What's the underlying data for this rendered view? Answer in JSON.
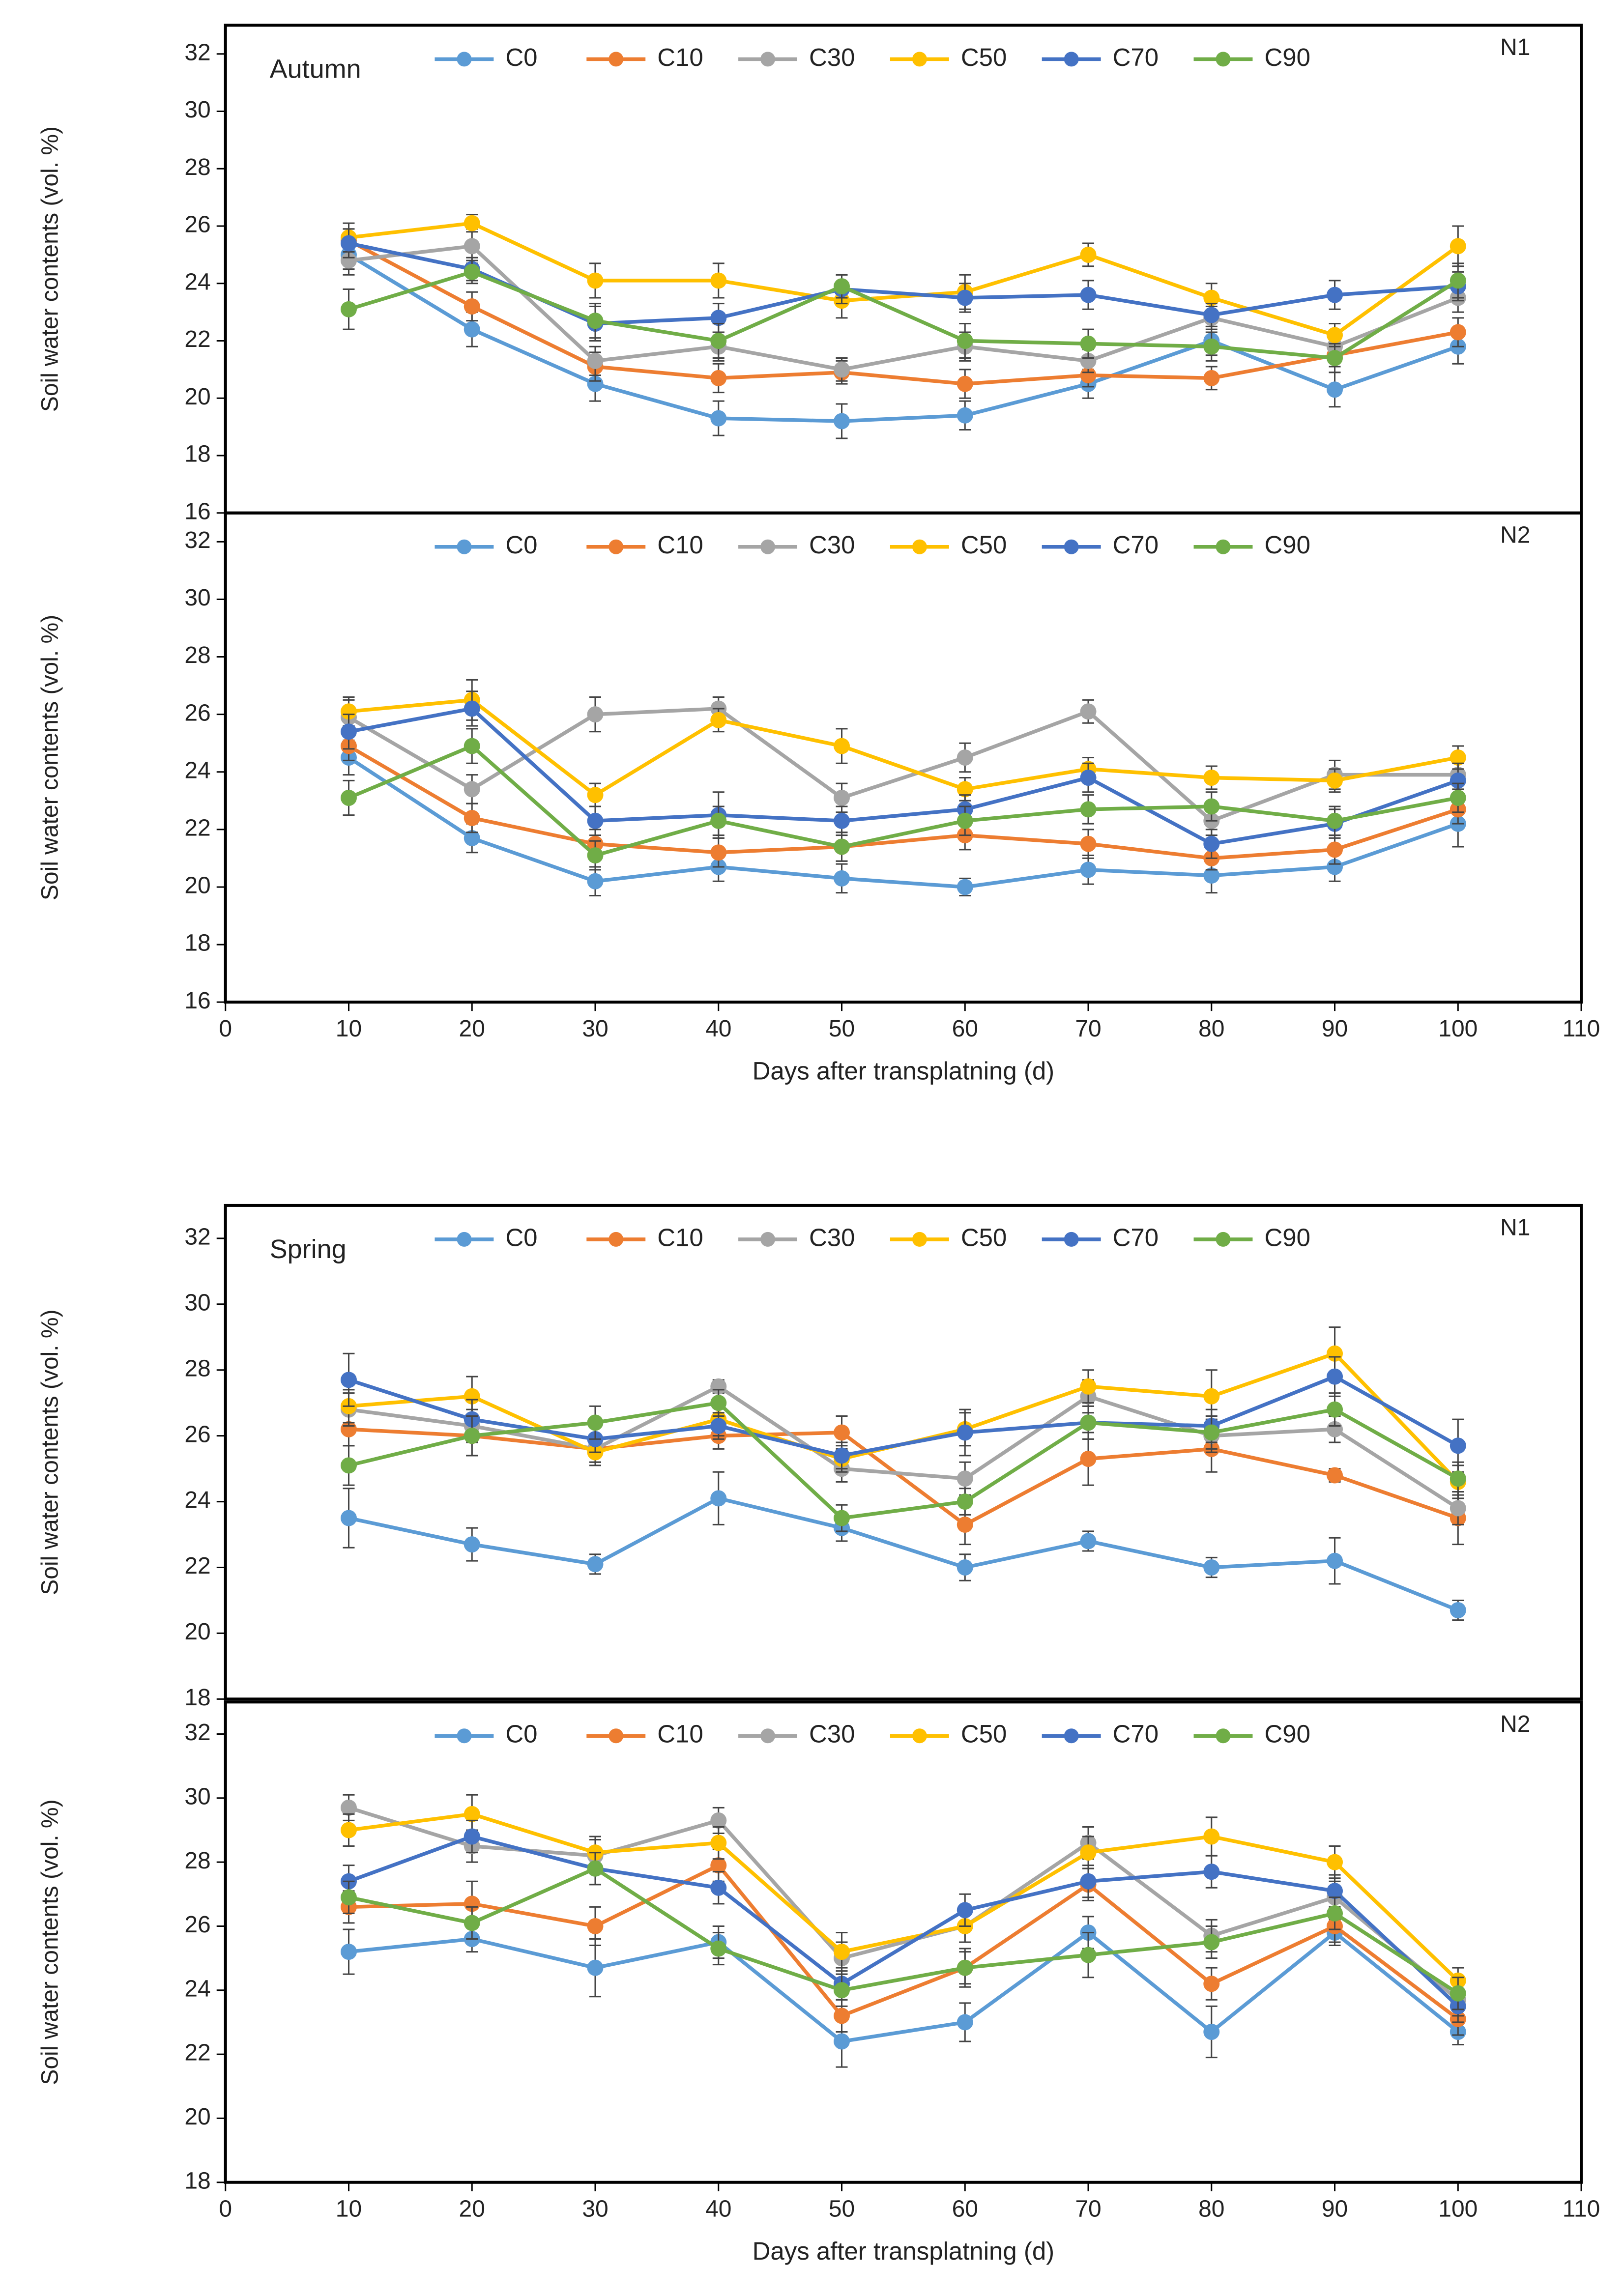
{
  "chart_data": [
    {
      "type": "line",
      "title": "Autumn",
      "panel_label": "N1",
      "ylabel": "Soil water contents (vol. %)",
      "x": [
        10,
        20,
        30,
        40,
        50,
        60,
        70,
        80,
        90,
        100
      ],
      "xlim": [
        0,
        110
      ],
      "ylim": [
        16,
        33
      ],
      "yticks": [
        16,
        18,
        20,
        22,
        24,
        26,
        28,
        30,
        32
      ],
      "legend": "top",
      "series": [
        {
          "name": "C0",
          "color": "#5b9bd5",
          "values": [
            25.0,
            22.4,
            20.5,
            19.3,
            19.2,
            19.4,
            20.5,
            22.0,
            20.3,
            21.8
          ],
          "errors": [
            0.5,
            0.6,
            0.6,
            0.6,
            0.6,
            0.5,
            0.5,
            0.5,
            0.6,
            0.6
          ]
        },
        {
          "name": "C10",
          "color": "#ed7d31",
          "values": [
            25.5,
            23.2,
            21.1,
            20.7,
            20.9,
            20.5,
            20.8,
            20.7,
            21.5,
            22.3
          ],
          "errors": [
            0.4,
            0.5,
            0.5,
            0.5,
            0.4,
            0.5,
            0.4,
            0.4,
            0.4,
            0.5
          ]
        },
        {
          "name": "C30",
          "color": "#a5a5a5",
          "values": [
            24.8,
            25.3,
            21.3,
            21.8,
            21.0,
            21.8,
            21.3,
            22.8,
            21.8,
            23.5
          ],
          "errors": [
            0.5,
            0.6,
            0.5,
            0.5,
            0.4,
            0.5,
            0.4,
            0.4,
            0.5,
            0.5
          ]
        },
        {
          "name": "C50",
          "color": "#ffc000",
          "values": [
            25.6,
            26.1,
            24.1,
            24.1,
            23.4,
            23.7,
            25.0,
            23.5,
            22.2,
            25.3
          ],
          "errors": [
            0.5,
            0.3,
            0.6,
            0.6,
            0.6,
            0.6,
            0.4,
            0.5,
            0.4,
            0.7
          ]
        },
        {
          "name": "C70",
          "color": "#4472c4",
          "values": [
            25.4,
            24.5,
            22.6,
            22.8,
            23.8,
            23.5,
            23.6,
            22.9,
            23.6,
            23.9
          ],
          "errors": [
            0.5,
            0.4,
            0.6,
            0.5,
            0.5,
            0.5,
            0.5,
            0.4,
            0.5,
            0.5
          ]
        },
        {
          "name": "C90",
          "color": "#70ad47",
          "values": [
            23.1,
            24.4,
            22.7,
            22.0,
            23.9,
            22.0,
            21.9,
            21.8,
            21.4,
            24.1
          ],
          "errors": [
            0.7,
            0.4,
            0.6,
            0.6,
            0.4,
            0.6,
            0.5,
            0.5,
            0.5,
            0.6
          ]
        }
      ]
    },
    {
      "type": "line",
      "panel_label": "N2",
      "ylabel": "Soil water contents (vol. %)",
      "xlabel": "Days after transplatning (d)",
      "x": [
        10,
        20,
        30,
        40,
        50,
        60,
        70,
        80,
        90,
        100
      ],
      "xlim": [
        0,
        110
      ],
      "xticks": [
        0,
        10,
        20,
        30,
        40,
        50,
        60,
        70,
        80,
        90,
        100,
        110
      ],
      "ylim": [
        16,
        33
      ],
      "yticks": [
        16,
        18,
        20,
        22,
        24,
        26,
        28,
        30,
        32
      ],
      "legend": "top",
      "series": [
        {
          "name": "C0",
          "color": "#5b9bd5",
          "values": [
            24.5,
            21.7,
            20.2,
            20.7,
            20.3,
            20.0,
            20.6,
            20.4,
            20.7,
            22.2
          ],
          "errors": [
            0.6,
            0.5,
            0.5,
            0.5,
            0.5,
            0.3,
            0.5,
            0.6,
            0.5,
            0.8
          ]
        },
        {
          "name": "C10",
          "color": "#ed7d31",
          "values": [
            24.9,
            22.4,
            21.5,
            21.2,
            21.4,
            21.8,
            21.5,
            21.0,
            21.3,
            22.7
          ],
          "errors": [
            0.5,
            0.5,
            0.5,
            0.5,
            0.5,
            0.5,
            0.5,
            0.4,
            0.5,
            0.5
          ]
        },
        {
          "name": "C30",
          "color": "#a5a5a5",
          "values": [
            25.9,
            23.4,
            26.0,
            26.2,
            23.1,
            24.5,
            26.1,
            22.3,
            23.9,
            23.9
          ],
          "errors": [
            0.6,
            0.5,
            0.6,
            0.4,
            0.5,
            0.5,
            0.4,
            0.5,
            0.5,
            0.5
          ]
        },
        {
          "name": "C50",
          "color": "#ffc000",
          "values": [
            26.1,
            26.5,
            23.2,
            25.8,
            24.9,
            23.4,
            24.1,
            23.8,
            23.7,
            24.5
          ],
          "errors": [
            0.5,
            0.7,
            0.4,
            0.4,
            0.6,
            0.4,
            0.4,
            0.4,
            0.4,
            0.4
          ]
        },
        {
          "name": "C70",
          "color": "#4472c4",
          "values": [
            25.4,
            26.2,
            22.3,
            22.5,
            22.3,
            22.7,
            23.8,
            21.5,
            22.2,
            23.7
          ],
          "errors": [
            0.6,
            0.6,
            0.5,
            0.8,
            0.5,
            0.5,
            0.5,
            0.5,
            0.5,
            0.6
          ]
        },
        {
          "name": "C90",
          "color": "#70ad47",
          "values": [
            23.1,
            24.9,
            21.1,
            22.3,
            21.4,
            22.3,
            22.7,
            22.8,
            22.3,
            23.1
          ],
          "errors": [
            0.6,
            0.6,
            0.5,
            0.5,
            0.5,
            0.5,
            0.5,
            0.5,
            0.5,
            0.5
          ]
        }
      ]
    },
    {
      "type": "line",
      "title": "Spring",
      "panel_label": "N1",
      "ylabel": "Soil water contents (vol. %)",
      "x": [
        10,
        20,
        30,
        40,
        50,
        60,
        70,
        80,
        90,
        100
      ],
      "xlim": [
        0,
        110
      ],
      "ylim": [
        18,
        33
      ],
      "yticks": [
        18,
        20,
        22,
        24,
        26,
        28,
        30,
        32
      ],
      "legend": "top",
      "series": [
        {
          "name": "C0",
          "color": "#5b9bd5",
          "values": [
            23.5,
            22.7,
            22.1,
            24.1,
            23.2,
            22.0,
            22.8,
            22.0,
            22.2,
            20.7
          ],
          "errors": [
            0.9,
            0.5,
            0.3,
            0.8,
            0.4,
            0.4,
            0.3,
            0.3,
            0.7,
            0.3
          ]
        },
        {
          "name": "C10",
          "color": "#ed7d31",
          "values": [
            26.2,
            26.0,
            25.6,
            26.0,
            26.1,
            23.3,
            25.3,
            25.6,
            24.8,
            23.5
          ],
          "errors": [
            0.5,
            0.6,
            0.4,
            0.4,
            0.5,
            0.6,
            0.8,
            0.7,
            0.2,
            0.8
          ]
        },
        {
          "name": "C30",
          "color": "#a5a5a5",
          "values": [
            26.8,
            26.3,
            25.6,
            27.5,
            25.0,
            24.7,
            27.2,
            26.0,
            26.2,
            23.8
          ],
          "errors": [
            0.5,
            0.5,
            0.4,
            0.2,
            0.4,
            0.5,
            0.5,
            0.5,
            0.4,
            0.5
          ]
        },
        {
          "name": "C50",
          "color": "#ffc000",
          "values": [
            26.9,
            27.2,
            25.5,
            26.5,
            25.3,
            26.2,
            27.5,
            27.2,
            28.5,
            24.6
          ],
          "errors": [
            0.5,
            0.6,
            0.4,
            0.5,
            0.4,
            0.5,
            0.5,
            0.8,
            0.8,
            0.5
          ]
        },
        {
          "name": "C70",
          "color": "#4472c4",
          "values": [
            27.7,
            26.5,
            25.9,
            26.3,
            25.4,
            26.1,
            26.4,
            26.3,
            27.8,
            25.7
          ],
          "errors": [
            0.8,
            0.6,
            0.4,
            0.4,
            0.4,
            0.7,
            0.5,
            0.5,
            0.6,
            0.8
          ]
        },
        {
          "name": "C90",
          "color": "#70ad47",
          "values": [
            25.1,
            26.0,
            26.4,
            27.0,
            23.5,
            24.0,
            26.4,
            26.1,
            26.8,
            24.7
          ],
          "errors": [
            0.6,
            0.6,
            0.5,
            0.4,
            0.4,
            0.4,
            0.5,
            0.5,
            0.5,
            0.5
          ]
        }
      ]
    },
    {
      "type": "line",
      "panel_label": "N2",
      "ylabel": "Soil water contents (vol. %)",
      "xlabel": "Days after transplatning (d)",
      "x": [
        10,
        20,
        30,
        40,
        50,
        60,
        70,
        80,
        90,
        100
      ],
      "xlim": [
        0,
        110
      ],
      "xticks": [
        0,
        10,
        20,
        30,
        40,
        50,
        60,
        70,
        80,
        90,
        100,
        110
      ],
      "ylim": [
        18,
        33
      ],
      "yticks": [
        18,
        20,
        22,
        24,
        26,
        28,
        30,
        32
      ],
      "legend": "top",
      "series": [
        {
          "name": "C0",
          "color": "#5b9bd5",
          "values": [
            25.2,
            25.6,
            24.7,
            25.5,
            22.4,
            23.0,
            25.8,
            22.7,
            25.8,
            22.7
          ],
          "errors": [
            0.7,
            0.4,
            0.9,
            0.5,
            0.8,
            0.6,
            0.5,
            0.8,
            0.4,
            0.4
          ]
        },
        {
          "name": "C10",
          "color": "#ed7d31",
          "values": [
            26.6,
            26.7,
            26.0,
            27.9,
            23.2,
            24.7,
            27.3,
            24.2,
            26.0,
            23.1
          ],
          "errors": [
            0.5,
            0.7,
            0.6,
            0.5,
            0.5,
            0.6,
            0.5,
            0.5,
            0.5,
            0.5
          ]
        },
        {
          "name": "C30",
          "color": "#a5a5a5",
          "values": [
            29.7,
            28.5,
            28.2,
            29.3,
            25.0,
            26.0,
            28.6,
            25.7,
            26.9,
            23.7
          ],
          "errors": [
            0.4,
            0.5,
            0.5,
            0.4,
            0.5,
            0.5,
            0.5,
            0.5,
            0.5,
            0.5
          ]
        },
        {
          "name": "C50",
          "color": "#ffc000",
          "values": [
            29.0,
            29.5,
            28.3,
            28.6,
            25.2,
            26.0,
            28.3,
            28.8,
            28.0,
            24.3
          ],
          "errors": [
            0.5,
            0.6,
            0.5,
            0.5,
            0.6,
            0.5,
            0.5,
            0.6,
            0.5,
            0.4
          ]
        },
        {
          "name": "C70",
          "color": "#4472c4",
          "values": [
            27.4,
            28.8,
            27.8,
            27.2,
            24.2,
            26.5,
            27.4,
            27.7,
            27.1,
            23.5
          ],
          "errors": [
            0.5,
            0.5,
            0.5,
            0.5,
            0.5,
            0.5,
            0.5,
            0.5,
            0.5,
            0.5
          ]
        },
        {
          "name": "C90",
          "color": "#70ad47",
          "values": [
            26.9,
            26.1,
            27.8,
            25.3,
            24.0,
            24.7,
            25.1,
            25.5,
            26.4,
            23.9
          ],
          "errors": [
            0.5,
            0.5,
            0.5,
            0.5,
            0.5,
            0.5,
            0.7,
            0.5,
            0.5,
            0.5
          ]
        }
      ]
    }
  ]
}
